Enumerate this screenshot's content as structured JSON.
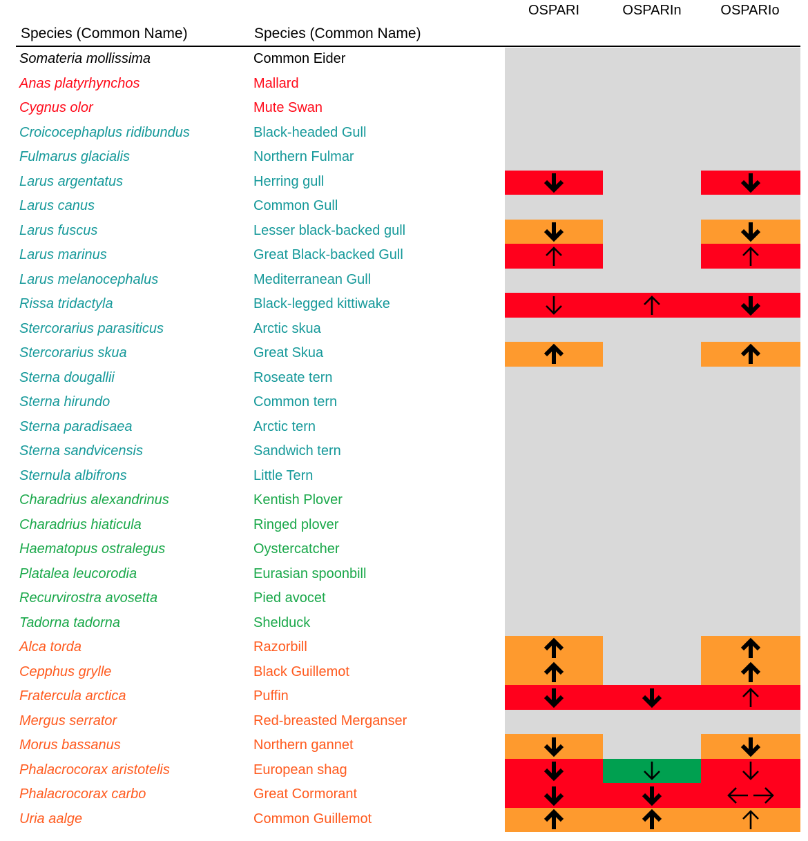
{
  "columns": {
    "scientific_header": "Species (Common Name)",
    "common_header": "Species (Common Name)",
    "indicators": [
      "OSPARI",
      "OSPARIn",
      "OSPARIo"
    ]
  },
  "colors": {
    "text": {
      "black": "#000000",
      "red": "#ff0a1a",
      "teal": "#16999a",
      "green": "#1aa84a",
      "orange": "#ff5a1e"
    },
    "cell": {
      "grey": "#d9d9d9",
      "red": "#ff001c",
      "orange": "#fe9a2e",
      "green": "#00a050"
    }
  },
  "arrow_legend": {
    "down-bold": "bold down arrow",
    "down-thin": "thin down arrow",
    "up-bold": "bold up arrow",
    "up-thin": "thin up arrow",
    "both-thin": "left-right arrow"
  },
  "rows": [
    {
      "scientific": "Somateria mollissima",
      "common": "Common Eider",
      "group": "black",
      "cells": [
        [
          "grey",
          ""
        ],
        [
          "grey",
          ""
        ],
        [
          "grey",
          ""
        ]
      ]
    },
    {
      "scientific": "Anas platyrhynchos",
      "common": "Mallard",
      "group": "red",
      "cells": [
        [
          "grey",
          ""
        ],
        [
          "grey",
          ""
        ],
        [
          "grey",
          ""
        ]
      ]
    },
    {
      "scientific": "Cygnus olor",
      "common": "Mute Swan",
      "group": "red",
      "cells": [
        [
          "grey",
          ""
        ],
        [
          "grey",
          ""
        ],
        [
          "grey",
          ""
        ]
      ]
    },
    {
      "scientific": "Croicocephaplus ridibundus",
      "common": "Black-headed Gull",
      "group": "teal",
      "cells": [
        [
          "grey",
          ""
        ],
        [
          "grey",
          ""
        ],
        [
          "grey",
          ""
        ]
      ]
    },
    {
      "scientific": "Fulmarus glacialis",
      "common": "Northern Fulmar",
      "group": "teal",
      "cells": [
        [
          "grey",
          ""
        ],
        [
          "grey",
          ""
        ],
        [
          "grey",
          ""
        ]
      ]
    },
    {
      "scientific": "Larus argentatus",
      "common": "Herring gull",
      "group": "teal",
      "cells": [
        [
          "red",
          "down-bold"
        ],
        [
          "grey",
          ""
        ],
        [
          "red",
          "down-bold"
        ]
      ]
    },
    {
      "scientific": "Larus canus",
      "common": "Common Gull",
      "group": "teal",
      "cells": [
        [
          "grey",
          ""
        ],
        [
          "grey",
          ""
        ],
        [
          "grey",
          ""
        ]
      ]
    },
    {
      "scientific": "Larus fuscus",
      "common": "Lesser black-backed gull",
      "group": "teal",
      "cells": [
        [
          "orange",
          "down-bold"
        ],
        [
          "grey",
          ""
        ],
        [
          "orange",
          "down-bold"
        ]
      ]
    },
    {
      "scientific": "Larus marinus",
      "common": "Great Black-backed Gull",
      "group": "teal",
      "cells": [
        [
          "red",
          "up-thin"
        ],
        [
          "grey",
          ""
        ],
        [
          "red",
          "up-thin"
        ]
      ]
    },
    {
      "scientific": "Larus melanocephalus",
      "common": "Mediterranean Gull",
      "group": "teal",
      "cells": [
        [
          "grey",
          ""
        ],
        [
          "grey",
          ""
        ],
        [
          "grey",
          ""
        ]
      ]
    },
    {
      "scientific": "Rissa tridactyla",
      "common": "Black-legged kittiwake",
      "group": "teal",
      "cells": [
        [
          "red",
          "down-thin"
        ],
        [
          "red",
          "up-thin"
        ],
        [
          "red",
          "down-bold"
        ]
      ]
    },
    {
      "scientific": "Stercorarius parasiticus",
      "common": "Arctic skua",
      "group": "teal",
      "cells": [
        [
          "grey",
          ""
        ],
        [
          "grey",
          ""
        ],
        [
          "grey",
          ""
        ]
      ]
    },
    {
      "scientific": "Stercorarius skua",
      "common": "Great Skua",
      "group": "teal",
      "cells": [
        [
          "orange",
          "up-bold"
        ],
        [
          "grey",
          ""
        ],
        [
          "orange",
          "up-bold"
        ]
      ]
    },
    {
      "scientific": "Sterna dougallii",
      "common": "Roseate tern",
      "group": "teal",
      "cells": [
        [
          "grey",
          ""
        ],
        [
          "grey",
          ""
        ],
        [
          "grey",
          ""
        ]
      ]
    },
    {
      "scientific": "Sterna hirundo",
      "common": "Common tern",
      "group": "teal",
      "cells": [
        [
          "grey",
          ""
        ],
        [
          "grey",
          ""
        ],
        [
          "grey",
          ""
        ]
      ]
    },
    {
      "scientific": "Sterna paradisaea",
      "common": "Arctic tern",
      "group": "teal",
      "cells": [
        [
          "grey",
          ""
        ],
        [
          "grey",
          ""
        ],
        [
          "grey",
          ""
        ]
      ]
    },
    {
      "scientific": "Sterna sandvicensis",
      "common": "Sandwich tern",
      "group": "teal",
      "cells": [
        [
          "grey",
          ""
        ],
        [
          "grey",
          ""
        ],
        [
          "grey",
          ""
        ]
      ]
    },
    {
      "scientific": "Sternula albifrons",
      "common": "Little Tern",
      "group": "teal",
      "cells": [
        [
          "grey",
          ""
        ],
        [
          "grey",
          ""
        ],
        [
          "grey",
          ""
        ]
      ]
    },
    {
      "scientific": "Charadrius alexandrinus",
      "common": "Kentish Plover",
      "group": "green",
      "cells": [
        [
          "grey",
          ""
        ],
        [
          "grey",
          ""
        ],
        [
          "grey",
          ""
        ]
      ]
    },
    {
      "scientific": "Charadrius hiaticula",
      "common": "Ringed plover",
      "group": "green",
      "cells": [
        [
          "grey",
          ""
        ],
        [
          "grey",
          ""
        ],
        [
          "grey",
          ""
        ]
      ]
    },
    {
      "scientific": "Haematopus ostralegus",
      "common": "Oystercatcher",
      "group": "green",
      "cells": [
        [
          "grey",
          ""
        ],
        [
          "grey",
          ""
        ],
        [
          "grey",
          ""
        ]
      ]
    },
    {
      "scientific": "Platalea leucorodia",
      "common": "Eurasian spoonbill",
      "group": "green",
      "cells": [
        [
          "grey",
          ""
        ],
        [
          "grey",
          ""
        ],
        [
          "grey",
          ""
        ]
      ]
    },
    {
      "scientific": "Recurvirostra avosetta",
      "common": "Pied avocet",
      "group": "green",
      "cells": [
        [
          "grey",
          ""
        ],
        [
          "grey",
          ""
        ],
        [
          "grey",
          ""
        ]
      ]
    },
    {
      "scientific": "Tadorna tadorna",
      "common": "Shelduck",
      "group": "green",
      "cells": [
        [
          "grey",
          ""
        ],
        [
          "grey",
          ""
        ],
        [
          "grey",
          ""
        ]
      ]
    },
    {
      "scientific": "Alca torda",
      "common": "Razorbill",
      "group": "orange",
      "cells": [
        [
          "orange",
          "up-bold"
        ],
        [
          "grey",
          ""
        ],
        [
          "orange",
          "up-bold"
        ]
      ]
    },
    {
      "scientific": "Cepphus grylle",
      "common": "Black Guillemot",
      "group": "orange",
      "cells": [
        [
          "orange",
          "up-bold"
        ],
        [
          "grey",
          ""
        ],
        [
          "orange",
          "up-bold"
        ]
      ]
    },
    {
      "scientific": "Fratercula arctica",
      "common": "Puffin",
      "group": "orange",
      "cells": [
        [
          "red",
          "down-bold"
        ],
        [
          "red",
          "down-bold"
        ],
        [
          "red",
          "up-thin"
        ]
      ]
    },
    {
      "scientific": "Mergus serrator",
      "common": "Red-breasted Merganser",
      "group": "orange",
      "cells": [
        [
          "grey",
          ""
        ],
        [
          "grey",
          ""
        ],
        [
          "grey",
          ""
        ]
      ]
    },
    {
      "scientific": "Morus bassanus",
      "common": "Northern gannet",
      "group": "orange",
      "cells": [
        [
          "orange",
          "down-bold"
        ],
        [
          "grey",
          ""
        ],
        [
          "orange",
          "down-bold"
        ]
      ]
    },
    {
      "scientific": "Phalacrocorax aristotelis",
      "common": "European shag",
      "group": "orange",
      "cells": [
        [
          "red",
          "down-bold"
        ],
        [
          "green",
          "down-thin"
        ],
        [
          "red",
          "down-thin"
        ]
      ]
    },
    {
      "scientific": "Phalacrocorax carbo",
      "common": "Great Cormorant",
      "group": "orange",
      "cells": [
        [
          "red",
          "down-bold"
        ],
        [
          "red",
          "down-bold"
        ],
        [
          "red",
          "both-thin"
        ]
      ]
    },
    {
      "scientific": "Uria aalge",
      "common": "Common Guillemot",
      "group": "orange",
      "cells": [
        [
          "orange",
          "up-bold"
        ],
        [
          "orange",
          "up-bold"
        ],
        [
          "orange",
          "up-thin"
        ]
      ]
    }
  ]
}
